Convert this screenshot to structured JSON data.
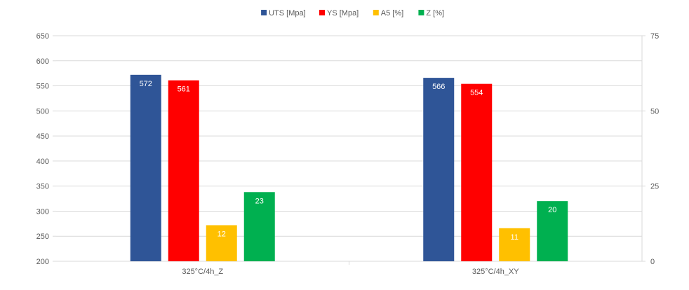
{
  "chart_data": {
    "type": "bar",
    "title": "",
    "categories": [
      "325°C/4h_Z",
      "325°C/4h_XY"
    ],
    "series": [
      {
        "name": "UTS [Mpa]",
        "axis": "left",
        "color": "#2F5597",
        "values": [
          572,
          566
        ],
        "labels": [
          "572",
          "566"
        ]
      },
      {
        "name": "YS [Mpa]",
        "axis": "left",
        "color": "#FF0000",
        "values": [
          561,
          554
        ],
        "labels": [
          "561",
          "554"
        ]
      },
      {
        "name": "A5 [%]",
        "axis": "right",
        "color": "#FFC000",
        "values": [
          12,
          11
        ],
        "labels": [
          "12",
          "11"
        ]
      },
      {
        "name": "Z [%]",
        "axis": "right",
        "color": "#00B050",
        "values": [
          23,
          20
        ],
        "labels": [
          "23",
          "20"
        ]
      }
    ],
    "y_left": {
      "min": 200,
      "max": 650,
      "ticks": [
        "200",
        "250",
        "300",
        "350",
        "400",
        "450",
        "500",
        "550",
        "600",
        "650"
      ]
    },
    "y_right": {
      "min": 0,
      "max": 75,
      "ticks": [
        "0",
        "25",
        "50",
        "75"
      ]
    },
    "grid": true,
    "legend_position": "top-center",
    "colors": {
      "grid": "#D9D9D9",
      "axis": "#595959",
      "text": "#595959",
      "label": "#FFFFFF"
    }
  }
}
